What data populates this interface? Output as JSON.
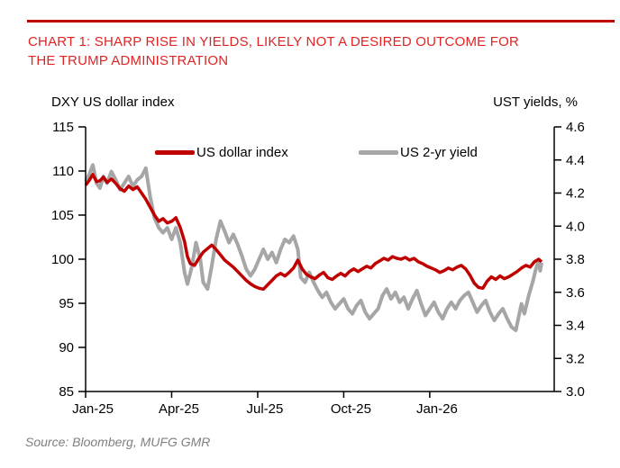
{
  "header": {
    "accent_color": "#c00000",
    "title_color": "#e02424",
    "title_line1": "CHART 1: SHARP RISE IN YIELDS, LIKELY NOT A DESIRED OUTCOME FOR",
    "title_line2": "THE TRUMP ADMINISTRATION"
  },
  "legend": {
    "items": [
      {
        "label": "US dollar index",
        "color": "#c00000"
      },
      {
        "label": "US 2-yr yield",
        "color": "#a6a6a6"
      }
    ]
  },
  "source": {
    "text": "Source: Bloomberg, MUFG GMR"
  },
  "chart_data": {
    "type": "line",
    "title": "CHART 1: SHARP RISE IN YIELDS, LIKELY NOT A DESIRED OUTCOME FOR THE TRUMP ADMINISTRATION",
    "grid": false,
    "legend_position": "top-inside",
    "left_axis": {
      "title": "DXY US dollar index",
      "min": 85,
      "max": 115,
      "ticks": [
        115,
        110,
        105,
        100,
        95,
        90,
        85
      ]
    },
    "right_axis": {
      "title": "UST yields, %",
      "min": 3.0,
      "max": 4.6,
      "tick_labels": [
        "4.6",
        "4.4",
        "4.2",
        "4.0",
        "3.8",
        "3.6",
        "3.4",
        "3.2",
        "3.0"
      ]
    },
    "x_axis": {
      "tick_labels": [
        "Jan-25",
        "Apr-25",
        "Jul-25",
        "Oct-25",
        "Jan-26"
      ],
      "tick_months": [
        0,
        3,
        6,
        9,
        12
      ],
      "months_span": 16.34
    },
    "series": [
      {
        "name": "US dollar index",
        "axis": "left",
        "color": "#c00000",
        "width": 3.5,
        "points": [
          [
            0.0,
            108.4
          ],
          [
            0.12,
            108.9
          ],
          [
            0.25,
            109.6
          ],
          [
            0.38,
            108.8
          ],
          [
            0.5,
            108.9
          ],
          [
            0.62,
            109.3
          ],
          [
            0.75,
            108.7
          ],
          [
            0.9,
            109.1
          ],
          [
            1.05,
            108.6
          ],
          [
            1.2,
            108.0
          ],
          [
            1.35,
            107.7
          ],
          [
            1.5,
            108.3
          ],
          [
            1.65,
            107.9
          ],
          [
            1.8,
            108.2
          ],
          [
            1.95,
            107.5
          ],
          [
            2.1,
            106.8
          ],
          [
            2.25,
            105.9
          ],
          [
            2.4,
            105.0
          ],
          [
            2.55,
            104.3
          ],
          [
            2.7,
            104.6
          ],
          [
            2.85,
            104.1
          ],
          [
            3.0,
            104.3
          ],
          [
            3.15,
            104.7
          ],
          [
            3.3,
            103.6
          ],
          [
            3.45,
            102.0
          ],
          [
            3.55,
            100.3
          ],
          [
            3.65,
            99.5
          ],
          [
            3.8,
            99.3
          ],
          [
            3.95,
            100.1
          ],
          [
            4.1,
            100.8
          ],
          [
            4.25,
            101.2
          ],
          [
            4.4,
            101.6
          ],
          [
            4.55,
            101.1
          ],
          [
            4.7,
            100.5
          ],
          [
            4.85,
            99.9
          ],
          [
            5.0,
            99.5
          ],
          [
            5.15,
            99.1
          ],
          [
            5.3,
            98.6
          ],
          [
            5.45,
            98.1
          ],
          [
            5.6,
            97.6
          ],
          [
            5.75,
            97.2
          ],
          [
            5.9,
            96.9
          ],
          [
            6.05,
            96.7
          ],
          [
            6.2,
            96.6
          ],
          [
            6.35,
            97.1
          ],
          [
            6.5,
            97.6
          ],
          [
            6.65,
            98.1
          ],
          [
            6.8,
            98.4
          ],
          [
            6.95,
            98.1
          ],
          [
            7.1,
            98.5
          ],
          [
            7.25,
            99.0
          ],
          [
            7.4,
            99.9
          ],
          [
            7.55,
            98.9
          ],
          [
            7.7,
            98.3
          ],
          [
            7.85,
            98.0
          ],
          [
            8.0,
            97.8
          ],
          [
            8.15,
            98.2
          ],
          [
            8.3,
            98.5
          ],
          [
            8.45,
            97.9
          ],
          [
            8.6,
            97.7
          ],
          [
            8.75,
            98.1
          ],
          [
            8.9,
            98.4
          ],
          [
            9.05,
            98.1
          ],
          [
            9.2,
            98.6
          ],
          [
            9.35,
            98.9
          ],
          [
            9.5,
            98.6
          ],
          [
            9.65,
            98.9
          ],
          [
            9.8,
            99.2
          ],
          [
            9.95,
            99.0
          ],
          [
            10.1,
            99.5
          ],
          [
            10.25,
            99.8
          ],
          [
            10.4,
            100.1
          ],
          [
            10.55,
            99.9
          ],
          [
            10.7,
            100.3
          ],
          [
            10.85,
            100.1
          ],
          [
            11.0,
            100.0
          ],
          [
            11.15,
            100.2
          ],
          [
            11.3,
            99.9
          ],
          [
            11.45,
            100.1
          ],
          [
            11.6,
            99.7
          ],
          [
            11.75,
            99.5
          ],
          [
            11.9,
            99.2
          ],
          [
            12.05,
            99.0
          ],
          [
            12.2,
            98.8
          ],
          [
            12.35,
            98.5
          ],
          [
            12.5,
            98.7
          ],
          [
            12.65,
            99.0
          ],
          [
            12.8,
            98.8
          ],
          [
            12.95,
            99.1
          ],
          [
            13.1,
            99.3
          ],
          [
            13.25,
            98.9
          ],
          [
            13.4,
            98.2
          ],
          [
            13.55,
            97.3
          ],
          [
            13.7,
            96.8
          ],
          [
            13.85,
            96.7
          ],
          [
            14.0,
            97.5
          ],
          [
            14.15,
            98.0
          ],
          [
            14.3,
            97.7
          ],
          [
            14.45,
            98.1
          ],
          [
            14.6,
            97.8
          ],
          [
            14.75,
            98.0
          ],
          [
            14.9,
            98.3
          ],
          [
            15.05,
            98.6
          ],
          [
            15.2,
            99.0
          ],
          [
            15.35,
            99.3
          ],
          [
            15.5,
            99.1
          ],
          [
            15.65,
            99.7
          ],
          [
            15.8,
            100.0
          ],
          [
            15.9,
            99.7
          ]
        ]
      },
      {
        "name": "US 2-yr yield",
        "axis": "right",
        "color": "#a6a6a6",
        "width": 4,
        "points": [
          [
            0.0,
            4.27
          ],
          [
            0.12,
            4.31
          ],
          [
            0.25,
            4.37
          ],
          [
            0.38,
            4.26
          ],
          [
            0.5,
            4.23
          ],
          [
            0.62,
            4.3
          ],
          [
            0.75,
            4.26
          ],
          [
            0.9,
            4.33
          ],
          [
            1.05,
            4.28
          ],
          [
            1.2,
            4.22
          ],
          [
            1.35,
            4.26
          ],
          [
            1.5,
            4.3
          ],
          [
            1.65,
            4.24
          ],
          [
            1.8,
            4.28
          ],
          [
            1.95,
            4.3
          ],
          [
            2.1,
            4.35
          ],
          [
            2.25,
            4.18
          ],
          [
            2.4,
            4.05
          ],
          [
            2.55,
            3.99
          ],
          [
            2.7,
            3.96
          ],
          [
            2.85,
            3.99
          ],
          [
            3.0,
            3.92
          ],
          [
            3.15,
            3.99
          ],
          [
            3.3,
            3.9
          ],
          [
            3.45,
            3.72
          ],
          [
            3.55,
            3.65
          ],
          [
            3.7,
            3.75
          ],
          [
            3.85,
            3.9
          ],
          [
            4.0,
            3.8
          ],
          [
            4.1,
            3.66
          ],
          [
            4.25,
            3.62
          ],
          [
            4.4,
            3.76
          ],
          [
            4.55,
            3.92
          ],
          [
            4.7,
            4.03
          ],
          [
            4.85,
            3.97
          ],
          [
            5.0,
            3.9
          ],
          [
            5.15,
            3.95
          ],
          [
            5.3,
            3.89
          ],
          [
            5.45,
            3.82
          ],
          [
            5.6,
            3.74
          ],
          [
            5.75,
            3.7
          ],
          [
            5.9,
            3.74
          ],
          [
            6.05,
            3.8
          ],
          [
            6.2,
            3.86
          ],
          [
            6.35,
            3.8
          ],
          [
            6.5,
            3.84
          ],
          [
            6.65,
            3.78
          ],
          [
            6.8,
            3.86
          ],
          [
            6.95,
            3.92
          ],
          [
            7.1,
            3.9
          ],
          [
            7.25,
            3.94
          ],
          [
            7.4,
            3.86
          ],
          [
            7.5,
            3.69
          ],
          [
            7.65,
            3.66
          ],
          [
            7.8,
            3.72
          ],
          [
            7.95,
            3.66
          ],
          [
            8.1,
            3.61
          ],
          [
            8.25,
            3.57
          ],
          [
            8.4,
            3.6
          ],
          [
            8.55,
            3.54
          ],
          [
            8.7,
            3.5
          ],
          [
            8.85,
            3.53
          ],
          [
            9.0,
            3.56
          ],
          [
            9.15,
            3.5
          ],
          [
            9.3,
            3.47
          ],
          [
            9.45,
            3.52
          ],
          [
            9.6,
            3.55
          ],
          [
            9.75,
            3.48
          ],
          [
            9.9,
            3.44
          ],
          [
            10.05,
            3.47
          ],
          [
            10.2,
            3.5
          ],
          [
            10.35,
            3.58
          ],
          [
            10.5,
            3.62
          ],
          [
            10.65,
            3.56
          ],
          [
            10.8,
            3.6
          ],
          [
            10.95,
            3.54
          ],
          [
            11.1,
            3.57
          ],
          [
            11.25,
            3.5
          ],
          [
            11.4,
            3.56
          ],
          [
            11.55,
            3.61
          ],
          [
            11.7,
            3.53
          ],
          [
            11.85,
            3.46
          ],
          [
            12.0,
            3.5
          ],
          [
            12.15,
            3.54
          ],
          [
            12.3,
            3.48
          ],
          [
            12.45,
            3.44
          ],
          [
            12.6,
            3.5
          ],
          [
            12.75,
            3.54
          ],
          [
            12.9,
            3.5
          ],
          [
            13.05,
            3.55
          ],
          [
            13.2,
            3.58
          ],
          [
            13.35,
            3.6
          ],
          [
            13.5,
            3.54
          ],
          [
            13.65,
            3.48
          ],
          [
            13.8,
            3.52
          ],
          [
            13.95,
            3.55
          ],
          [
            14.1,
            3.48
          ],
          [
            14.25,
            3.43
          ],
          [
            14.4,
            3.47
          ],
          [
            14.55,
            3.5
          ],
          [
            14.7,
            3.44
          ],
          [
            14.85,
            3.39
          ],
          [
            15.0,
            3.37
          ],
          [
            15.1,
            3.45
          ],
          [
            15.2,
            3.53
          ],
          [
            15.3,
            3.47
          ],
          [
            15.45,
            3.58
          ],
          [
            15.6,
            3.67
          ],
          [
            15.7,
            3.74
          ],
          [
            15.8,
            3.79
          ],
          [
            15.85,
            3.73
          ],
          [
            15.9,
            3.78
          ]
        ]
      }
    ]
  }
}
